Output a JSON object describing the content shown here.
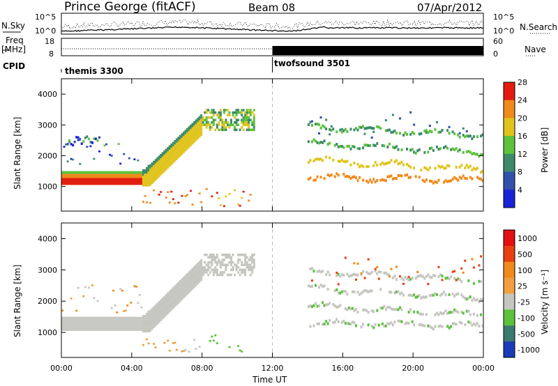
{
  "header": {
    "station": "Prince George (fitACF)",
    "beam": "Beam 08",
    "date": "07/Apr/2012"
  },
  "side_labels": {
    "n_sky": "N.Sky",
    "n_search": "N.Search",
    "freq_line1": "Freq",
    "freq_line2": "[MHz]",
    "nave": "Nave",
    "cpid": "CPID"
  },
  "top_axes": {
    "nsky_ticks": [
      "10^5",
      "10^0"
    ],
    "nsearch_ticks": [
      "10^5",
      "10^0"
    ],
    "freq_ticks": [
      "18",
      "8"
    ],
    "nave_ticks": [
      "60",
      "0"
    ]
  },
  "cpid": {
    "segments": [
      {
        "label": "themis 3300",
        "start_hour": 0
      },
      {
        "label": "twofsound 3501",
        "start_hour": 12
      }
    ]
  },
  "x_axis": {
    "label": "Time UT",
    "ticks": [
      "00:00",
      "04:00",
      "08:00",
      "12:00",
      "16:00",
      "20:00",
      "00:00"
    ],
    "range_hours": [
      0,
      24
    ]
  },
  "chart_data": [
    {
      "type": "heatmap",
      "title": "",
      "xlabel": "Time UT",
      "ylabel": "Slant Range [km]",
      "xlim_hours": [
        0,
        24
      ],
      "ylim": [
        200,
        4500
      ],
      "y_ticks": [
        "1000",
        "2000",
        "3000",
        "4000"
      ],
      "colorbar": {
        "label": "Power [dB]",
        "ticks": [
          "4",
          "8",
          "12",
          "16",
          "20",
          "24",
          "28"
        ],
        "colors": [
          "#1a22d8",
          "#3350ab",
          "#3d8a6a",
          "#5cc23c",
          "#e0c41c",
          "#f08a1c",
          "#e21c0e"
        ]
      },
      "features": [
        {
          "name": "near-range ionospheric band",
          "x_hours": [
            0,
            4.5
          ],
          "range_km": [
            1050,
            1500
          ]
        },
        {
          "name": "rising echo band",
          "x_hours": [
            5,
            8
          ],
          "range_km": [
            1500,
            3300
          ]
        },
        {
          "name": "far-range echoes",
          "x_hours": [
            8,
            11
          ],
          "range_km": [
            2800,
            3500
          ]
        },
        {
          "name": "multi-layer bands",
          "x_hours": [
            14,
            24
          ],
          "range_km": [
            1100,
            3200
          ]
        }
      ]
    },
    {
      "type": "heatmap",
      "title": "",
      "xlabel": "Time UT",
      "ylabel": "Slant Range [km]",
      "xlim_hours": [
        0,
        24
      ],
      "ylim": [
        200,
        4500
      ],
      "y_ticks": [
        "1000",
        "2000",
        "3000",
        "4000"
      ],
      "colorbar": {
        "label": "Velocity [m s⁻¹]",
        "ticks": [
          "1000",
          "500",
          "100",
          "25",
          "-25",
          "-100",
          "-500",
          "-1000"
        ],
        "colors": [
          "#1a3ab8",
          "#3a7a70",
          "#5cc23c",
          "#c6c6c0",
          "#f0a040",
          "#f08a1c",
          "#e84010",
          "#e21010"
        ]
      },
      "features": [
        {
          "name": "ground scatter band",
          "x_hours": [
            0,
            4.5
          ],
          "range_km": [
            1000,
            1500
          ]
        },
        {
          "name": "rising ground scatter",
          "x_hours": [
            5,
            8
          ],
          "range_km": [
            1500,
            3400
          ]
        },
        {
          "name": "multi-layer ground scatter",
          "x_hours": [
            14,
            24
          ],
          "range_km": [
            1100,
            3000
          ]
        }
      ]
    }
  ]
}
